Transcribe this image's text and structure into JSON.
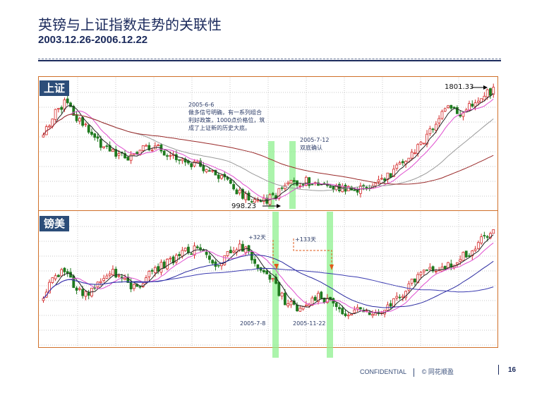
{
  "slide": {
    "title": "英镑与上证指数走势的关联性",
    "subtitle": "2003.12.26-2006.12.22"
  },
  "panels": {
    "top_label": "上证",
    "bottom_label": "镑美"
  },
  "annotations": {
    "price_high": "1801.33",
    "price_low": "998.23",
    "note_date": "2005-6-6",
    "note_lines": [
      "做多信号明确，有一系列组合",
      "利好政策，1000点价格位，筑",
      "成了上证新的历史大底。"
    ],
    "double_bottom_date": "2005-7-12",
    "double_bottom_text": "双底确认",
    "lead1": "+32天",
    "lead2": "+133天",
    "gbp_date1": "2005-7-8",
    "gbp_date2": "2005-11-22"
  },
  "footer": {
    "confidential": "CONFIDENTIAL",
    "company": "© 同花顺盈",
    "page": "16"
  },
  "colors": {
    "candle_up": "#d42a2a",
    "candle_down": "#1f7a1f",
    "ma_short": "#e04fcf",
    "ma_mid": "#2a2aa0",
    "ma_long": "#9a2a2a",
    "highlight": "#8ff08f",
    "frame": "#d0702a",
    "label_bg": "#2c4d79"
  },
  "chart_data": [
    {
      "type": "candlestick",
      "name": "上证",
      "x_range": [
        "2003-12-26",
        "2006-12-22"
      ],
      "trend": [
        1480,
        1640,
        1720,
        1610,
        1520,
        1430,
        1380,
        1340,
        1310,
        1370,
        1400,
        1360,
        1330,
        1300,
        1260,
        1220,
        1180,
        1120,
        1060,
        1010,
        1000,
        1040,
        1100,
        1140,
        1150,
        1120,
        1110,
        1100,
        1080,
        1090,
        1120,
        1160,
        1220,
        1300,
        1380,
        1480,
        1600,
        1680,
        1620,
        1700,
        1760,
        1801
      ],
      "high_label": 1801.33,
      "low_label": 998.23
    },
    {
      "type": "candlestick",
      "name": "镑美",
      "x_range": [
        "2003-12-26",
        "2006-12-22"
      ],
      "trend": [
        1.78,
        1.84,
        1.86,
        1.8,
        1.78,
        1.82,
        1.86,
        1.84,
        1.8,
        1.82,
        1.86,
        1.88,
        1.9,
        1.92,
        1.93,
        1.9,
        1.88,
        1.92,
        1.94,
        1.9,
        1.86,
        1.82,
        1.76,
        1.74,
        1.76,
        1.78,
        1.76,
        1.74,
        1.72,
        1.74,
        1.72,
        1.74,
        1.76,
        1.8,
        1.84,
        1.86,
        1.85,
        1.88,
        1.9,
        1.92,
        1.96,
        1.98
      ]
    }
  ]
}
